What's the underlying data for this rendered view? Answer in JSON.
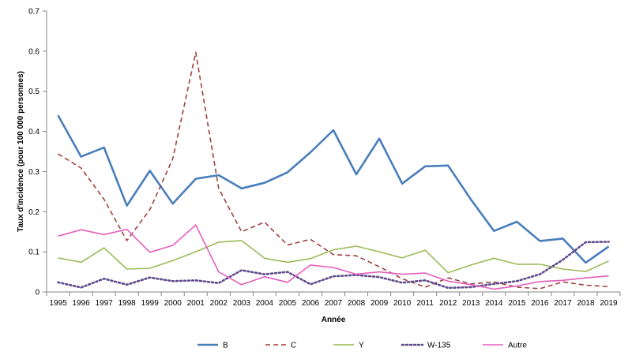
{
  "chart_data": {
    "type": "line",
    "xlabel": "Année",
    "ylabel": "Taux d'incidence (pour 100 000 personnes)",
    "ylim": [
      0,
      0.7
    ],
    "yticks": [
      "0",
      "0.1",
      "0.2",
      "0.3",
      "0.4",
      "0.5",
      "0.6",
      "0.7"
    ],
    "grid": false,
    "legend_position": "bottom",
    "categories": [
      "1995",
      "1996",
      "1997",
      "1998",
      "1999",
      "2000",
      "2001",
      "2002",
      "2003",
      "2004",
      "2005",
      "2006",
      "2007",
      "2008",
      "2009",
      "2010",
      "2011",
      "2012",
      "2013",
      "2014",
      "2015",
      "2016",
      "2017",
      "2018",
      "2019"
    ],
    "series": [
      {
        "name": "B",
        "color": "#4a7ebb",
        "style": "solid",
        "values": [
          0.44,
          0.337,
          0.36,
          0.215,
          0.302,
          0.22,
          0.282,
          0.291,
          0.258,
          0.272,
          0.298,
          0.348,
          0.403,
          0.293,
          0.382,
          0.27,
          0.313,
          0.315,
          0.23,
          0.152,
          0.175,
          0.127,
          0.133,
          0.073,
          0.113
        ]
      },
      {
        "name": "C",
        "color": "#a0413e",
        "style": "dashed",
        "values": [
          0.344,
          0.309,
          0.231,
          0.128,
          0.205,
          0.332,
          0.597,
          0.258,
          0.15,
          0.174,
          0.117,
          0.131,
          0.093,
          0.09,
          0.063,
          0.033,
          0.012,
          0.035,
          0.02,
          0.025,
          0.012,
          0.008,
          0.025,
          0.017,
          0.013
        ]
      },
      {
        "name": "Y",
        "color": "#9bbb59",
        "style": "solid",
        "values": [
          0.085,
          0.074,
          0.11,
          0.057,
          0.059,
          0.078,
          0.1,
          0.124,
          0.128,
          0.084,
          0.074,
          0.083,
          0.105,
          0.114,
          0.1,
          0.085,
          0.104,
          0.048,
          0.067,
          0.084,
          0.069,
          0.069,
          0.057,
          0.051,
          0.077
        ]
      },
      {
        "name": "W-135",
        "color": "#5f4a8b",
        "style": "dotted",
        "values": [
          0.024,
          0.011,
          0.033,
          0.018,
          0.036,
          0.027,
          0.029,
          0.022,
          0.054,
          0.044,
          0.05,
          0.019,
          0.039,
          0.042,
          0.037,
          0.023,
          0.029,
          0.01,
          0.012,
          0.02,
          0.027,
          0.044,
          0.08,
          0.124,
          0.125
        ]
      },
      {
        "name": "Autre",
        "color": "#e55fbd",
        "style": "solid",
        "values": [
          0.139,
          0.155,
          0.143,
          0.156,
          0.099,
          0.116,
          0.167,
          0.05,
          0.018,
          0.038,
          0.024,
          0.067,
          0.061,
          0.044,
          0.05,
          0.044,
          0.047,
          0.027,
          0.018,
          0.007,
          0.015,
          0.026,
          0.029,
          0.035,
          0.04
        ]
      }
    ]
  }
}
